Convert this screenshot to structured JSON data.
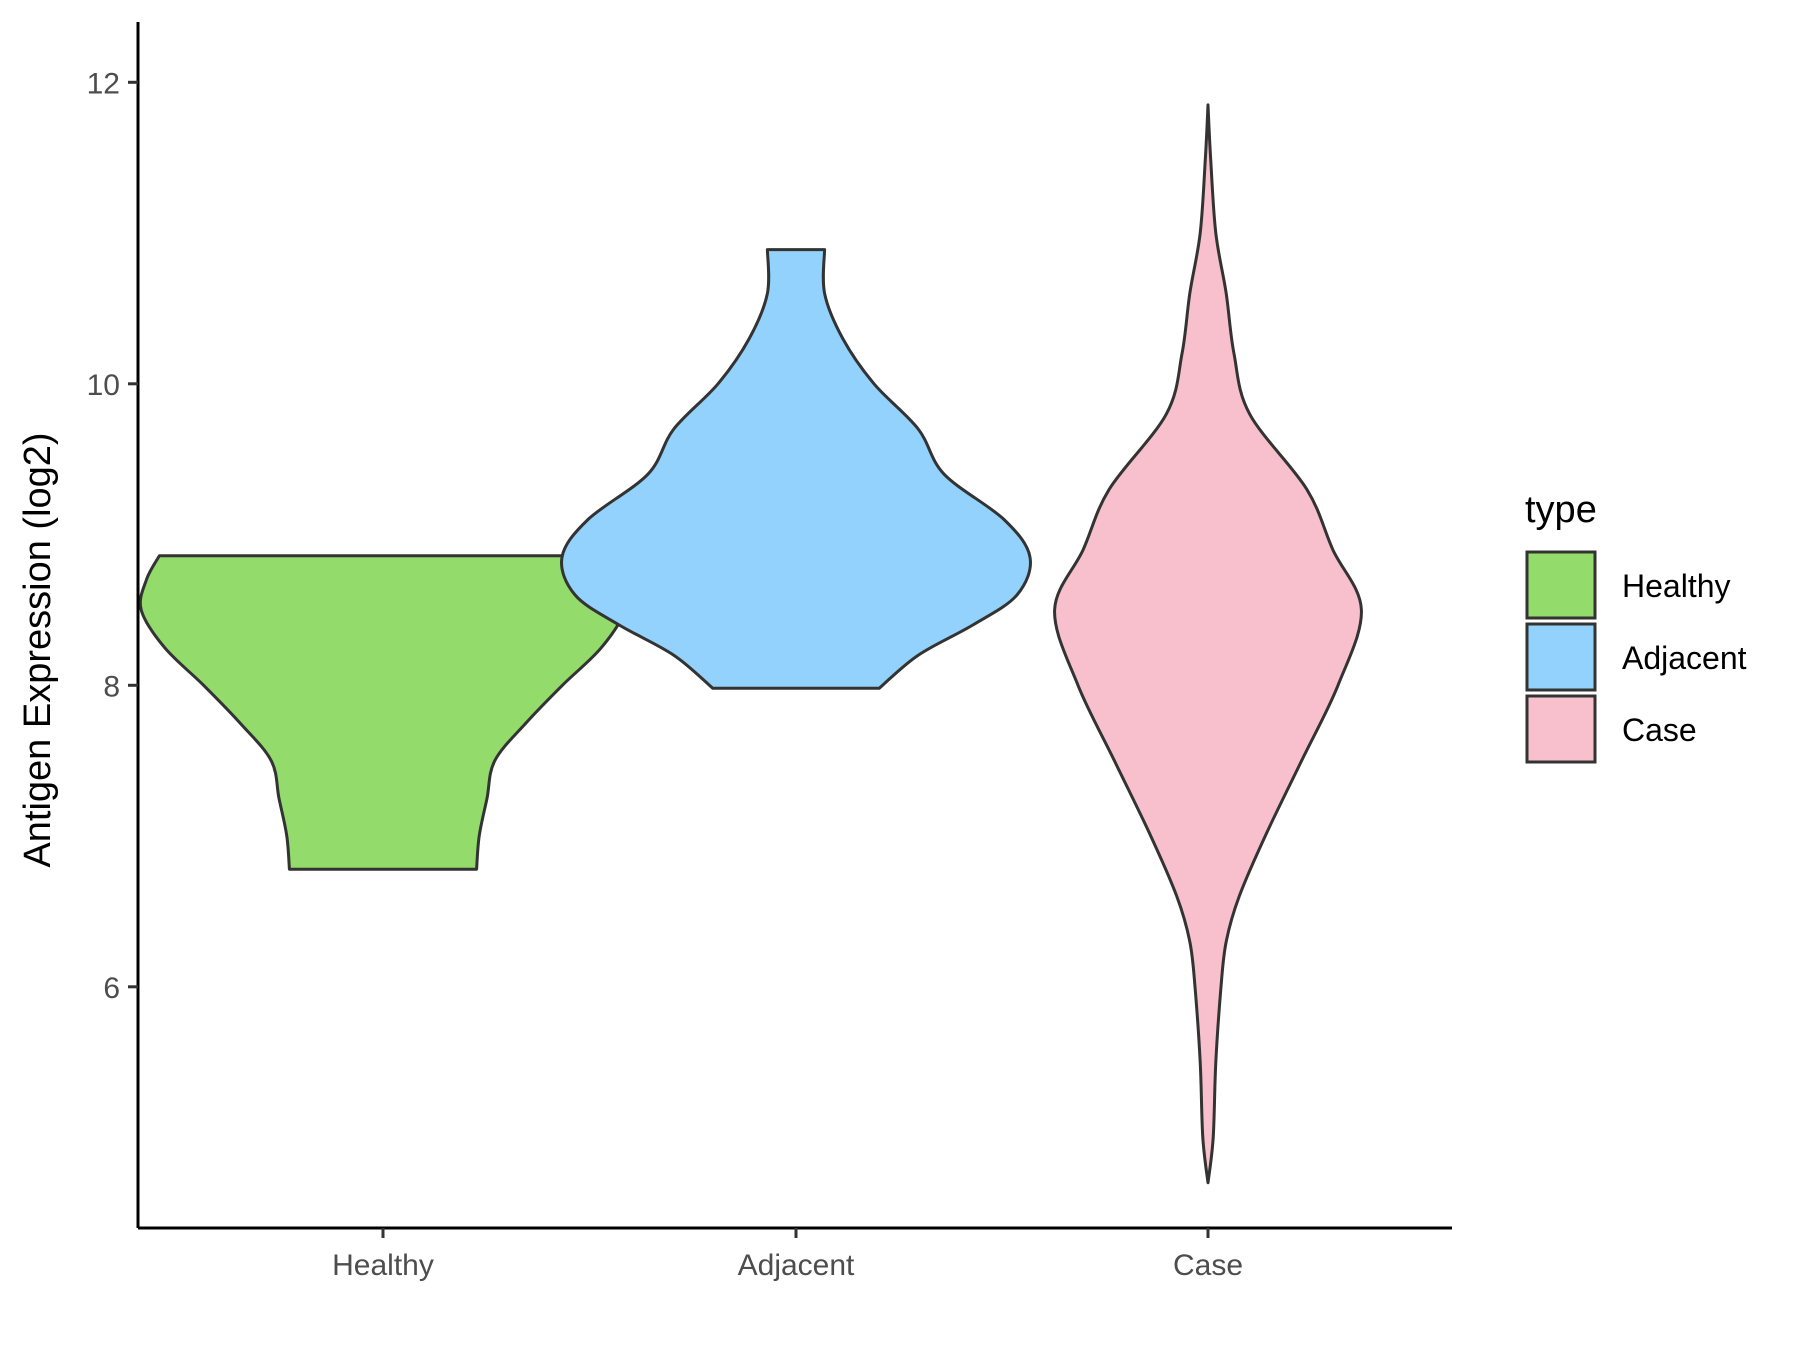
{
  "chart_data": {
    "type": "violin",
    "ylabel": "Antigen Expression (log2)",
    "xlabel": "",
    "ylim": [
      4.4,
      12.4
    ],
    "yticks": [
      6,
      8,
      10,
      12
    ],
    "categories": [
      "Healthy",
      "Adjacent",
      "Case"
    ],
    "legend": {
      "title": "type",
      "placement": "right"
    },
    "grid": false,
    "series": [
      {
        "name": "Healthy",
        "color": "#93DB6A",
        "min": 6.78,
        "max": 8.86,
        "profile": [
          [
            6.78,
            0.36
          ],
          [
            7.0,
            0.37
          ],
          [
            7.25,
            0.4
          ],
          [
            7.5,
            0.43
          ],
          [
            7.75,
            0.55
          ],
          [
            8.0,
            0.69
          ],
          [
            8.25,
            0.84
          ],
          [
            8.5,
            0.93
          ],
          [
            8.7,
            0.91
          ],
          [
            8.86,
            0.86
          ]
        ]
      },
      {
        "name": "Adjacent",
        "color": "#92D2FC",
        "min": 7.98,
        "max": 10.89,
        "profile": [
          [
            7.98,
            0.32
          ],
          [
            8.2,
            0.47
          ],
          [
            8.4,
            0.68
          ],
          [
            8.6,
            0.85
          ],
          [
            8.85,
            0.9
          ],
          [
            9.1,
            0.8
          ],
          [
            9.4,
            0.57
          ],
          [
            9.7,
            0.47
          ],
          [
            10.0,
            0.3
          ],
          [
            10.3,
            0.18
          ],
          [
            10.6,
            0.11
          ],
          [
            10.89,
            0.11
          ]
        ]
      },
      {
        "name": "Case",
        "color": "#F7C0CC",
        "min": 4.7,
        "max": 11.85,
        "profile": [
          [
            4.7,
            0.0
          ],
          [
            5.0,
            0.02
          ],
          [
            5.5,
            0.03
          ],
          [
            6.0,
            0.05
          ],
          [
            6.3,
            0.07
          ],
          [
            6.6,
            0.12
          ],
          [
            7.0,
            0.22
          ],
          [
            7.5,
            0.36
          ],
          [
            8.0,
            0.5
          ],
          [
            8.5,
            0.59
          ],
          [
            8.9,
            0.48
          ],
          [
            9.3,
            0.38
          ],
          [
            9.8,
            0.16
          ],
          [
            10.2,
            0.1
          ],
          [
            10.6,
            0.07
          ],
          [
            11.0,
            0.03
          ],
          [
            11.5,
            0.01
          ],
          [
            11.85,
            0.0
          ]
        ]
      }
    ]
  }
}
